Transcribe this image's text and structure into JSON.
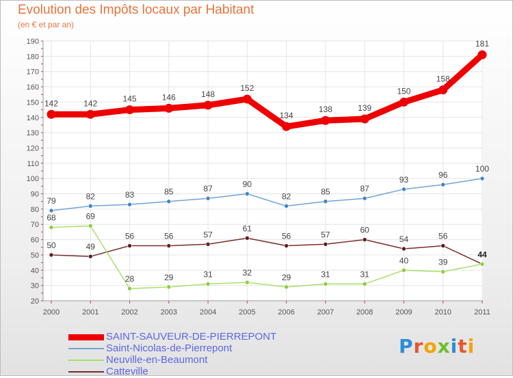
{
  "header": {
    "title": "Evolution des Impôts locaux par Habitant",
    "subtitle": "(en € et par an)"
  },
  "logo": {
    "text": "Proxiti",
    "letters": [
      "P",
      "r",
      "o",
      "x",
      "i",
      "t",
      "i"
    ],
    "colors": [
      "#2a8fd6",
      "#e4572e",
      "#f2a400",
      "#6cbf2c",
      "#2a8fd6",
      "#e4572e",
      "#f2a400"
    ]
  },
  "colors": {
    "title": "#e8743b",
    "legend_text": "#5b67e0",
    "axis_text": "#555555",
    "grid": "#e4e4e4",
    "tick_marks": "#cc3333"
  },
  "chart_data": {
    "type": "line",
    "title": "Evolution des Impôts locaux par Habitant",
    "subtitle": "(en € et par an)",
    "xlabel": "",
    "ylabel": "",
    "ylim": [
      20,
      190
    ],
    "yticks": [
      20,
      30,
      40,
      50,
      60,
      70,
      80,
      90,
      100,
      110,
      120,
      130,
      140,
      150,
      160,
      170,
      180,
      190
    ],
    "grid": true,
    "legend_position": "bottom-left",
    "x": [
      "2000",
      "2001",
      "2002",
      "2003",
      "2004",
      "2005",
      "2006",
      "2007",
      "2008",
      "2009",
      "2010",
      "2011"
    ],
    "series": [
      {
        "name": "SAINT-SAUVEUR-DE-PIERREPONT",
        "color": "#ee0000",
        "marker": "#ee0000",
        "width": 9,
        "values": [
          142,
          142,
          145,
          146,
          148,
          152,
          134,
          138,
          139,
          150,
          158,
          181
        ]
      },
      {
        "name": "Saint-Nicolas-de-Pierrepont",
        "color": "#6fa3d6",
        "marker": "#3f83cf",
        "width": 1.5,
        "values": [
          79,
          82,
          83,
          85,
          87,
          90,
          82,
          85,
          87,
          93,
          96,
          100
        ]
      },
      {
        "name": "Neuville-en-Beaumont",
        "color": "#a8df6a",
        "marker": "#8ccc3e",
        "width": 1.5,
        "values": [
          68,
          69,
          28,
          29,
          31,
          32,
          29,
          31,
          31,
          40,
          39,
          44
        ]
      },
      {
        "name": "Catteville",
        "color": "#7a2b2b",
        "marker": "#5e1d1d",
        "width": 1.5,
        "values": [
          50,
          49,
          56,
          56,
          57,
          61,
          56,
          57,
          60,
          54,
          56,
          44
        ]
      }
    ]
  }
}
